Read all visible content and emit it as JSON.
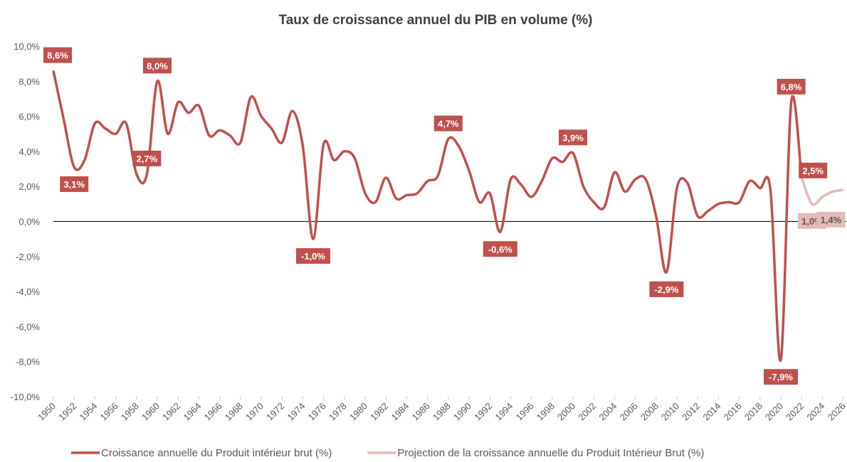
{
  "chart_data": {
    "type": "line",
    "title": "Taux de croissance annuel du PIB en volume (%)",
    "xlim": [
      1950,
      2026.3
    ],
    "xticks": [
      1950,
      1952,
      1954,
      1956,
      1958,
      1960,
      1962,
      1964,
      1966,
      1968,
      1970,
      1972,
      1974,
      1976,
      1978,
      1980,
      1982,
      1984,
      1986,
      1988,
      1990,
      1992,
      1994,
      1996,
      1998,
      2000,
      2002,
      2004,
      2006,
      2008,
      2010,
      2012,
      2014,
      2016,
      2018,
      2020,
      2022,
      2024,
      2026
    ],
    "ylim": [
      -10,
      10
    ],
    "yticks": [
      {
        "value": -10,
        "label": "-10,0%"
      },
      {
        "value": -8,
        "label": "-8,0%"
      },
      {
        "value": -6,
        "label": "-6,0%"
      },
      {
        "value": -4,
        "label": "-4,0%"
      },
      {
        "value": -2,
        "label": "-2,0%"
      },
      {
        "value": 0,
        "label": "0,0%"
      },
      {
        "value": 2,
        "label": "2,0%"
      },
      {
        "value": 4,
        "label": "4,0%"
      },
      {
        "value": 6,
        "label": "6,0%"
      },
      {
        "value": 8,
        "label": "8,0%"
      },
      {
        "value": 10,
        "label": "10,0%"
      }
    ],
    "series": [
      {
        "name": "Croissance annuelle du Produit intérieur brut (%)",
        "color": "#c0504d",
        "x": [
          1950,
          1951,
          1952,
          1953,
          1954,
          1955,
          1956,
          1957,
          1958,
          1959,
          1960,
          1961,
          1962,
          1963,
          1964,
          1965,
          1966,
          1967,
          1968,
          1969,
          1970,
          1971,
          1972,
          1973,
          1974,
          1975,
          1976,
          1977,
          1978,
          1979,
          1980,
          1981,
          1982,
          1983,
          1984,
          1985,
          1986,
          1987,
          1988,
          1989,
          1990,
          1991,
          1992,
          1993,
          1994,
          1995,
          1996,
          1997,
          1998,
          1999,
          2000,
          2001,
          2002,
          2003,
          2004,
          2005,
          2006,
          2007,
          2008,
          2009,
          2010,
          2011,
          2012,
          2013,
          2014,
          2015,
          2016,
          2017,
          2018,
          2019,
          2020,
          2021,
          2022
        ],
        "values": [
          8.6,
          5.8,
          3.1,
          3.5,
          5.6,
          5.3,
          5.0,
          5.6,
          2.7,
          2.7,
          8.0,
          5.0,
          6.8,
          6.2,
          6.6,
          4.9,
          5.2,
          4.9,
          4.5,
          7.1,
          6.0,
          5.3,
          4.5,
          6.3,
          4.3,
          -1.0,
          4.4,
          3.5,
          4.0,
          3.6,
          1.6,
          1.1,
          2.5,
          1.3,
          1.5,
          1.6,
          2.3,
          2.6,
          4.7,
          4.3,
          2.9,
          1.1,
          1.6,
          -0.6,
          2.4,
          2.1,
          1.4,
          2.3,
          3.6,
          3.4,
          3.9,
          2.0,
          1.1,
          0.8,
          2.8,
          1.7,
          2.4,
          2.4,
          0.3,
          -2.9,
          1.9,
          2.2,
          0.3,
          0.6,
          1.0,
          1.1,
          1.1,
          2.3,
          1.9,
          1.8,
          -7.9,
          6.8,
          2.5
        ],
        "value_labels": [
          "8,6%",
          null,
          "3,1%",
          null,
          null,
          null,
          null,
          null,
          null,
          "2,7%",
          "8,0%",
          null,
          null,
          null,
          null,
          null,
          null,
          null,
          null,
          null,
          null,
          null,
          null,
          null,
          null,
          "-1,0%",
          null,
          null,
          null,
          null,
          null,
          null,
          null,
          null,
          null,
          null,
          null,
          null,
          "4,7%",
          null,
          null,
          null,
          null,
          "-0,6%",
          null,
          null,
          null,
          null,
          null,
          null,
          "3,9%",
          null,
          null,
          null,
          null,
          null,
          null,
          null,
          null,
          "-2,9%",
          null,
          null,
          null,
          null,
          null,
          null,
          null,
          null,
          null,
          null,
          "-7,9%",
          "6,8%",
          "2,5%"
        ]
      },
      {
        "name": "Projection de la croissance annuelle du Produit Intérieur Brut (%)",
        "color": "#e6b9b8",
        "x": [
          2022,
          2023,
          2024,
          2025,
          2026
        ],
        "values": [
          2.5,
          1.0,
          1.4,
          1.7,
          1.8
        ],
        "value_labels": [
          null,
          "1,0%",
          "1,4%",
          null,
          null
        ]
      }
    ]
  }
}
